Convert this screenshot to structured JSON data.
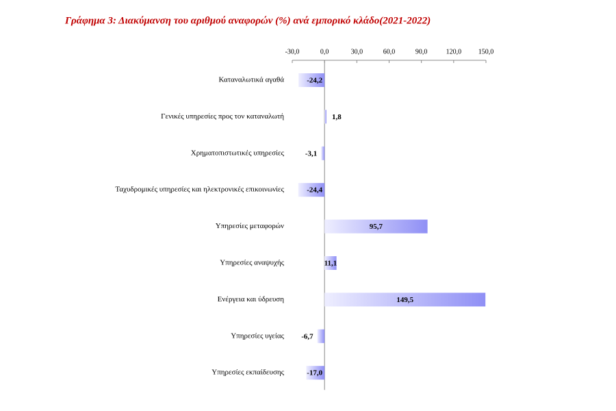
{
  "chart_data": {
    "type": "hbar",
    "title": "Γράφημα 3: Διακύμανση του αριθμού αναφορών (%) ανά εμπορικό κλάδο(2021-2022)",
    "categories": [
      "Καταναλωτικά αγαθά",
      "Γενικές υπηρεσίες προς τον καταναλωτή",
      "Χρηματοπιστωτικές υπηρεσίες",
      "Ταχυδρομικές υπηρεσίες και ηλεκτρονικές επικοινωνίες",
      "Υπηρεσίες μεταφορών",
      "Υπηρεσίες αναψυχής",
      "Ενέργεια και ύδρευση",
      "Υπηρεσίες υγείας",
      "Υπηρεσίες εκπαίδευσης"
    ],
    "values": [
      -24.2,
      1.8,
      -3.1,
      -24.4,
      95.7,
      11.1,
      149.5,
      -6.7,
      -17.0
    ],
    "value_labels": [
      "-24,2",
      "1,8",
      "-3,1",
      "-24,4",
      "95,7",
      "11,1",
      "149,5",
      "-6,7",
      "-17,0"
    ],
    "color": "#8f8ff5",
    "xlim": [
      -30,
      150
    ],
    "xticks": [
      {
        "value": -30,
        "label": "-30,0"
      },
      {
        "value": 0,
        "label": "0,0"
      },
      {
        "value": 30,
        "label": "30,0"
      },
      {
        "value": 60,
        "label": "60,0"
      },
      {
        "value": 90,
        "label": "90,0"
      },
      {
        "value": 120,
        "label": "120,0"
      },
      {
        "value": 150,
        "label": "150,0"
      }
    ]
  }
}
